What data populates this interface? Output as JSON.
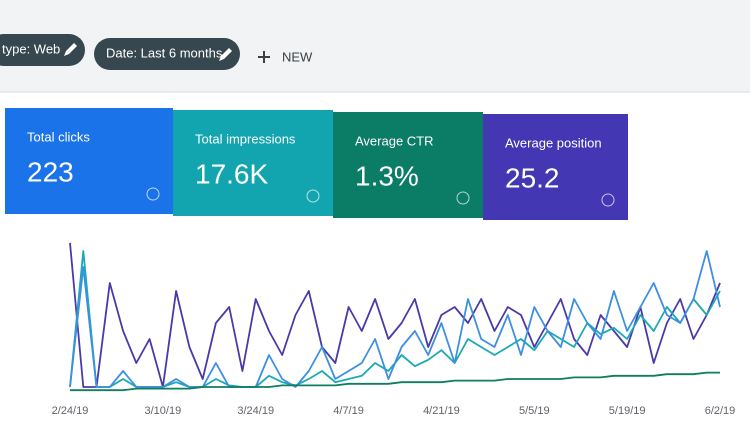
{
  "filters": [
    "type: Web",
    "Date: Last 6 months"
  ],
  "new_button": "NEW",
  "cards": [
    {
      "label": "Total clicks",
      "value": "223",
      "color": "#1a73e8"
    },
    {
      "label": "Total impressions",
      "value": "17.6K",
      "color": "#12a5b0"
    },
    {
      "label": "Average CTR",
      "value": "1.3%",
      "color": "#0b7c66"
    },
    {
      "label": "Average position",
      "value": "25.2",
      "color": "#4337b3"
    }
  ],
  "chart_data": {
    "type": "line",
    "categories": [
      "2/24/19",
      null,
      null,
      null,
      null,
      null,
      null,
      "3/10/19",
      null,
      null,
      null,
      null,
      null,
      null,
      "3/24/19",
      null,
      null,
      null,
      null,
      null,
      null,
      "4/7/19",
      null,
      null,
      null,
      null,
      null,
      null,
      "4/21/19",
      null,
      null,
      null,
      null,
      null,
      null,
      "5/5/19",
      null,
      null,
      null,
      null,
      null,
      null,
      "5/19/19",
      null,
      null,
      null,
      null,
      null,
      null,
      "6/2/19"
    ],
    "ylim": [
      0,
      100
    ],
    "series": [
      {
        "color": "#4a3aa8",
        "values": [
          95,
          5,
          5,
          70,
          40,
          20,
          35,
          5,
          65,
          30,
          10,
          45,
          55,
          15,
          60,
          40,
          25,
          50,
          65,
          30,
          20,
          55,
          40,
          60,
          35,
          45,
          60,
          30,
          50,
          55,
          45,
          60,
          40,
          55,
          50,
          30,
          45,
          60,
          35,
          25,
          50,
          40,
          30,
          55,
          20,
          45,
          60,
          35,
          50,
          70
        ]
      },
      {
        "color": "#1ba9b5",
        "values": [
          5,
          90,
          5,
          5,
          10,
          5,
          5,
          5,
          8,
          5,
          5,
          10,
          6,
          5,
          5,
          12,
          8,
          6,
          10,
          15,
          8,
          10,
          12,
          20,
          15,
          25,
          18,
          22,
          28,
          20,
          35,
          30,
          25,
          30,
          35,
          28,
          40,
          35,
          30,
          45,
          38,
          42,
          35,
          50,
          40,
          55,
          45,
          60,
          50,
          65
        ]
      },
      {
        "color": "#3d8fe0",
        "values": [
          5,
          80,
          5,
          5,
          15,
          5,
          5,
          5,
          10,
          5,
          5,
          20,
          5,
          5,
          5,
          25,
          10,
          5,
          15,
          30,
          10,
          15,
          20,
          35,
          10,
          30,
          40,
          25,
          45,
          20,
          60,
          35,
          30,
          50,
          25,
          55,
          40,
          30,
          60,
          45,
          35,
          65,
          40,
          55,
          70,
          50,
          45,
          60,
          90,
          55
        ]
      },
      {
        "color": "#0f7d5f",
        "values": [
          3,
          3,
          3,
          3,
          3,
          4,
          4,
          4,
          4,
          4,
          5,
          5,
          5,
          5,
          5,
          5,
          6,
          6,
          6,
          6,
          6,
          7,
          7,
          7,
          7,
          8,
          8,
          8,
          8,
          9,
          9,
          9,
          9,
          10,
          10,
          10,
          10,
          10,
          11,
          11,
          11,
          12,
          12,
          12,
          12,
          13,
          13,
          13,
          14,
          14
        ]
      }
    ]
  }
}
